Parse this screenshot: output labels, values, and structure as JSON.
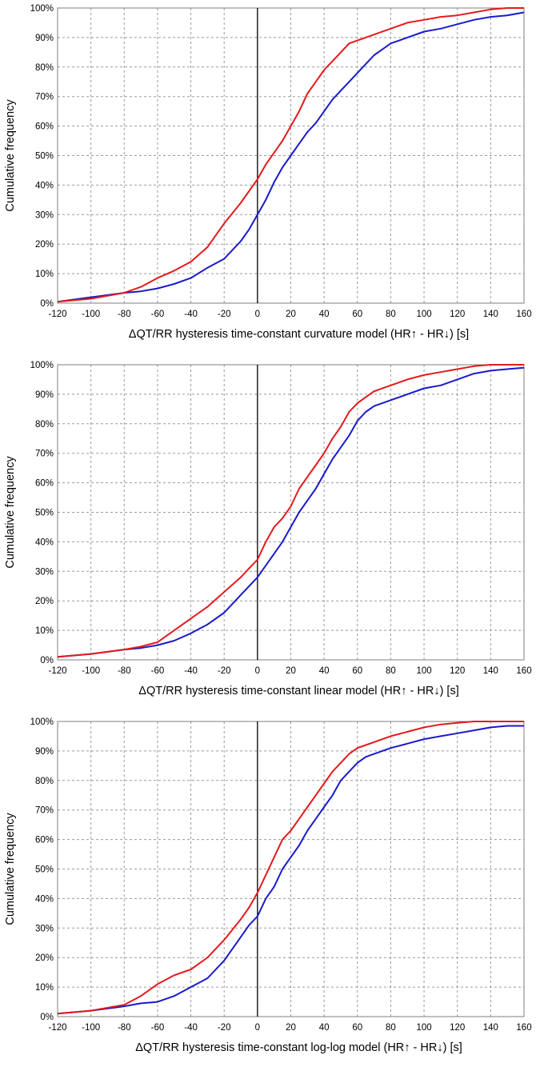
{
  "chart_data": [
    {
      "type": "line",
      "xlabel": "ΔQT/RR hysteresis time-constant curvature model (HR↑ - HR↓) [s]",
      "ylabel": "Cumulative frequency",
      "xlim": [
        -120,
        160
      ],
      "ylim": [
        0,
        100
      ],
      "x_ticks": [
        "-120",
        "-100",
        "-80",
        "-60",
        "-40",
        "-20",
        "0",
        "20",
        "40",
        "60",
        "80",
        "100",
        "120",
        "140",
        "160"
      ],
      "y_ticks": [
        "0%",
        "10%",
        "20%",
        "30%",
        "40%",
        "50%",
        "60%",
        "70%",
        "80%",
        "90%",
        "100%"
      ],
      "grid": true,
      "vertical_reference_line": 0,
      "series": [
        {
          "color": "#e41a1c",
          "x": [
            -120,
            -100,
            -80,
            -70,
            -60,
            -50,
            -40,
            -30,
            -25,
            -20,
            -10,
            -5,
            0,
            5,
            10,
            15,
            20,
            25,
            30,
            35,
            40,
            45,
            50,
            55,
            60,
            65,
            70,
            80,
            90,
            100,
            110,
            120,
            130,
            140,
            150,
            160
          ],
          "y": [
            0.5,
            1.5,
            3.5,
            5.5,
            8.5,
            11,
            14,
            19,
            23,
            27,
            34,
            38,
            42,
            47,
            51,
            55,
            60,
            65,
            71,
            75,
            79,
            82,
            85,
            88,
            89,
            90,
            91,
            93,
            95,
            96,
            97,
            97.5,
            98.5,
            99.5,
            100,
            100
          ]
        },
        {
          "color": "#1a1acc",
          "x": [
            -120,
            -100,
            -80,
            -70,
            -60,
            -50,
            -40,
            -30,
            -20,
            -10,
            -5,
            0,
            5,
            10,
            15,
            20,
            25,
            30,
            35,
            40,
            45,
            50,
            55,
            60,
            65,
            70,
            75,
            80,
            90,
            100,
            110,
            120,
            130,
            140,
            150,
            160
          ],
          "y": [
            0.5,
            2,
            3.5,
            4,
            5,
            6.5,
            8.5,
            12,
            15,
            21,
            25,
            30,
            35,
            41,
            46,
            50,
            54,
            58,
            61,
            65,
            69,
            72,
            75,
            78,
            81,
            84,
            86,
            88,
            90,
            92,
            93,
            94.5,
            96,
            97,
            97.5,
            98.5
          ]
        }
      ]
    },
    {
      "type": "line",
      "xlabel": "ΔQT/RR hysteresis time-constant linear model (HR↑ - HR↓) [s]",
      "ylabel": "Cumulative frequency",
      "xlim": [
        -120,
        160
      ],
      "ylim": [
        0,
        100
      ],
      "x_ticks": [
        "-120",
        "-100",
        "-80",
        "-60",
        "-40",
        "-20",
        "0",
        "20",
        "40",
        "60",
        "80",
        "100",
        "120",
        "140",
        "160"
      ],
      "y_ticks": [
        "0%",
        "10%",
        "20%",
        "30%",
        "40%",
        "50%",
        "60%",
        "70%",
        "80%",
        "90%",
        "100%"
      ],
      "grid": true,
      "vertical_reference_line": 0,
      "series": [
        {
          "color": "#e41a1c",
          "x": [
            -120,
            -100,
            -80,
            -70,
            -60,
            -50,
            -40,
            -30,
            -20,
            -10,
            -5,
            0,
            5,
            10,
            15,
            20,
            25,
            30,
            35,
            40,
            45,
            50,
            55,
            60,
            65,
            70,
            80,
            90,
            100,
            110,
            120,
            130,
            140,
            150,
            160
          ],
          "y": [
            1,
            2,
            3.5,
            4.5,
            6,
            10,
            14,
            18,
            23,
            28,
            31,
            34,
            40,
            45,
            48,
            52,
            58,
            62,
            66,
            70,
            75,
            79,
            84,
            87,
            89,
            91,
            93,
            95,
            96.5,
            97.5,
            98.5,
            99.5,
            100,
            100,
            100
          ]
        },
        {
          "color": "#1a1acc",
          "x": [
            -120,
            -100,
            -80,
            -70,
            -60,
            -50,
            -40,
            -30,
            -20,
            -10,
            -5,
            0,
            5,
            10,
            15,
            20,
            25,
            30,
            35,
            40,
            45,
            50,
            55,
            60,
            65,
            70,
            80,
            90,
            100,
            110,
            120,
            130,
            140,
            150,
            160
          ],
          "y": [
            1,
            2,
            3.5,
            4,
            5,
            6.5,
            9,
            12,
            16,
            22,
            25,
            28,
            32,
            36,
            40,
            45,
            50,
            54,
            58,
            63,
            68,
            72,
            76,
            81,
            84,
            86,
            88,
            90,
            92,
            93,
            95,
            97,
            98,
            98.5,
            99
          ]
        }
      ]
    },
    {
      "type": "line",
      "xlabel": "ΔQT/RR hysteresis time-constant log-log model (HR↑ - HR↓) [s]",
      "ylabel": "Cumulative frequency",
      "xlim": [
        -120,
        160
      ],
      "ylim": [
        0,
        100
      ],
      "x_ticks": [
        "-120",
        "-100",
        "-80",
        "-60",
        "-40",
        "-20",
        "0",
        "20",
        "40",
        "60",
        "80",
        "100",
        "120",
        "140",
        "160"
      ],
      "y_ticks": [
        "0%",
        "10%",
        "20%",
        "30%",
        "40%",
        "50%",
        "60%",
        "70%",
        "80%",
        "90%",
        "100%"
      ],
      "grid": true,
      "vertical_reference_line": 0,
      "series": [
        {
          "color": "#e41a1c",
          "x": [
            -120,
            -100,
            -80,
            -70,
            -60,
            -50,
            -40,
            -30,
            -20,
            -10,
            -5,
            0,
            5,
            10,
            15,
            20,
            25,
            30,
            35,
            40,
            45,
            50,
            55,
            60,
            65,
            70,
            80,
            90,
            100,
            110,
            120,
            130,
            140,
            150,
            160
          ],
          "y": [
            1,
            2,
            4,
            7,
            11,
            14,
            16,
            20,
            26,
            33,
            37,
            42,
            48,
            54,
            60,
            63,
            67,
            71,
            75,
            79,
            83,
            86,
            89,
            91,
            92,
            93,
            95,
            96.5,
            98,
            99,
            99.5,
            100,
            100,
            100,
            100
          ]
        },
        {
          "color": "#1a1acc",
          "x": [
            -120,
            -100,
            -80,
            -70,
            -60,
            -50,
            -40,
            -30,
            -20,
            -10,
            -5,
            0,
            5,
            10,
            15,
            20,
            25,
            30,
            35,
            40,
            45,
            50,
            55,
            60,
            65,
            70,
            80,
            90,
            100,
            110,
            120,
            130,
            140,
            150,
            160
          ],
          "y": [
            1,
            2,
            3.5,
            4.5,
            5,
            7,
            10,
            13,
            19,
            27,
            31,
            34,
            40,
            44,
            50,
            54,
            58,
            63,
            67,
            71,
            75,
            80,
            83,
            86,
            88,
            89,
            91,
            92.5,
            94,
            95,
            96,
            97,
            98,
            98.5,
            98.5
          ]
        }
      ]
    }
  ]
}
